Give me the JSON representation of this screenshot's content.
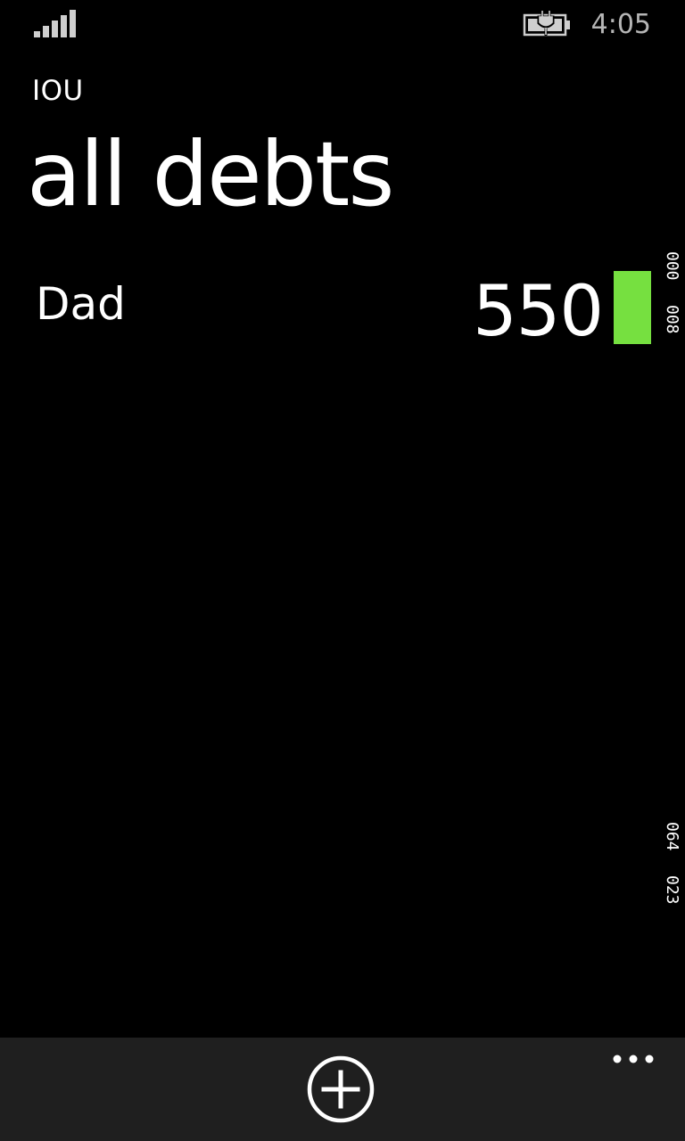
{
  "status_bar": {
    "time": "4:05",
    "signal_icon": "signal-strength-icon",
    "battery_icon": "battery-charging-icon"
  },
  "app": {
    "title": "IOU"
  },
  "page": {
    "title": "all debts"
  },
  "debts": [
    {
      "name": "Dad",
      "amount": "550",
      "color": "#76e040"
    }
  ],
  "debug": {
    "line1": "000",
    "line2": "008",
    "line3": "064",
    "line4": "023"
  },
  "app_bar": {
    "add_icon": "add-circle-icon",
    "more_icon": "more-ellipsis-icon"
  }
}
